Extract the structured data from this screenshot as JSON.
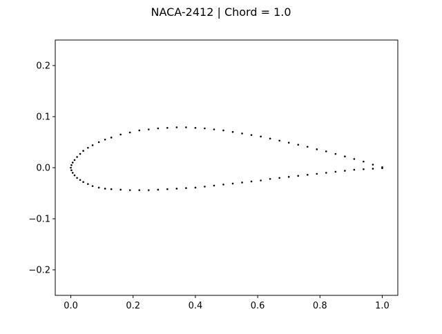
{
  "chart_data": {
    "type": "scatter",
    "title": "NACA-2412 | Chord = 1.0",
    "xlabel": "",
    "ylabel": "",
    "xlim": [
      -0.05,
      1.05
    ],
    "ylim": [
      -0.25,
      0.25
    ],
    "x_ticks": [
      0.0,
      0.2,
      0.4,
      0.6,
      0.8,
      1.0
    ],
    "x_tick_labels": [
      "0.0",
      "0.2",
      "0.4",
      "0.6",
      "0.8",
      "1.0"
    ],
    "y_ticks": [
      -0.2,
      -0.1,
      0.0,
      0.1,
      0.2
    ],
    "y_tick_labels": [
      "−0.2",
      "−0.1",
      "0.0",
      "0.1",
      "0.2"
    ],
    "grid": false,
    "marker_color": "#000000",
    "series": [
      {
        "values_description_free": true,
        "x": [
          1.0,
          0.97,
          0.94,
          0.91,
          0.88,
          0.85,
          0.82,
          0.79,
          0.76,
          0.73,
          0.7,
          0.67,
          0.64,
          0.61,
          0.58,
          0.55,
          0.52,
          0.49,
          0.46,
          0.43,
          0.4,
          0.37,
          0.34,
          0.31,
          0.28,
          0.25,
          0.22,
          0.19,
          0.16,
          0.13,
          0.11,
          0.09,
          0.07,
          0.055,
          0.04,
          0.03,
          0.02,
          0.012,
          0.006,
          0.002,
          0.0,
          0.002,
          0.006,
          0.012,
          0.02,
          0.03,
          0.04,
          0.055,
          0.07,
          0.09,
          0.11,
          0.13,
          0.16,
          0.19,
          0.22,
          0.25,
          0.28,
          0.31,
          0.34,
          0.37,
          0.4,
          0.43,
          0.46,
          0.49,
          0.52,
          0.55,
          0.58,
          0.61,
          0.64,
          0.67,
          0.7,
          0.73,
          0.76,
          0.79,
          0.82,
          0.85,
          0.88,
          0.91,
          0.94,
          0.97,
          1.0
        ],
        "y": [
          0.001,
          0.006,
          0.012,
          0.017,
          0.022,
          0.027,
          0.032,
          0.036,
          0.041,
          0.045,
          0.049,
          0.053,
          0.057,
          0.061,
          0.064,
          0.067,
          0.07,
          0.073,
          0.075,
          0.077,
          0.078,
          0.079,
          0.079,
          0.078,
          0.077,
          0.075,
          0.073,
          0.069,
          0.065,
          0.059,
          0.055,
          0.05,
          0.044,
          0.039,
          0.033,
          0.027,
          0.021,
          0.015,
          0.01,
          0.005,
          0.0,
          -0.005,
          -0.01,
          -0.015,
          -0.02,
          -0.024,
          -0.028,
          -0.032,
          -0.036,
          -0.039,
          -0.041,
          -0.042,
          -0.043,
          -0.044,
          -0.044,
          -0.044,
          -0.043,
          -0.042,
          -0.041,
          -0.04,
          -0.039,
          -0.037,
          -0.035,
          -0.033,
          -0.031,
          -0.029,
          -0.027,
          -0.025,
          -0.022,
          -0.02,
          -0.018,
          -0.016,
          -0.014,
          -0.012,
          -0.01,
          -0.008,
          -0.006,
          -0.004,
          -0.003,
          -0.002,
          -0.001
        ]
      }
    ]
  }
}
